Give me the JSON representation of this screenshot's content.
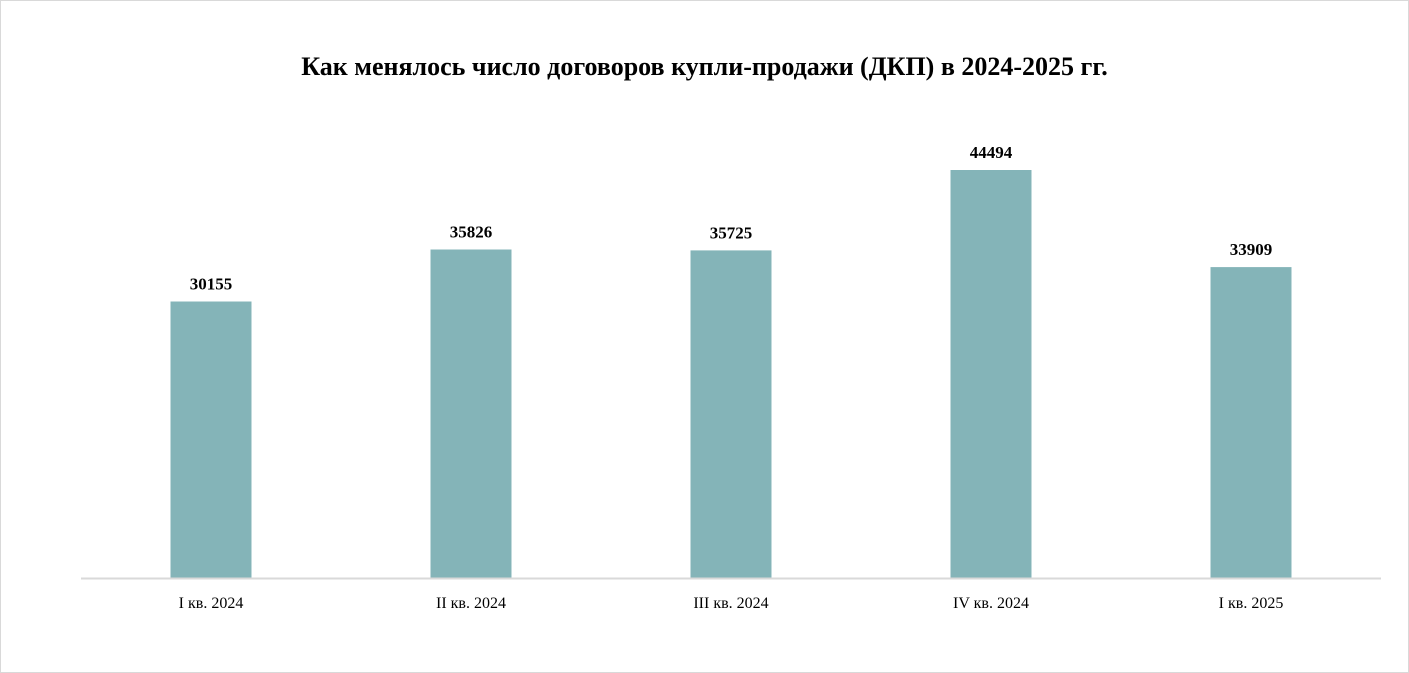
{
  "chart_data": {
    "type": "bar",
    "title": "Как менялось число договоров  купли-продажи (ДКП) в 2024-2025 гг.",
    "xlabel": "",
    "ylabel": "",
    "categories": [
      "I кв. 2024",
      "II кв. 2024",
      "III кв. 2024",
      "IV кв. 2024",
      "I кв. 2025"
    ],
    "values": [
      30155,
      35826,
      35725,
      44494,
      33909
    ],
    "ylim": [
      0,
      50000
    ],
    "grid": false,
    "legend": "none",
    "data_labels": true,
    "bar_color": "#84b4b8",
    "axis_color": "#d9d9d9"
  }
}
